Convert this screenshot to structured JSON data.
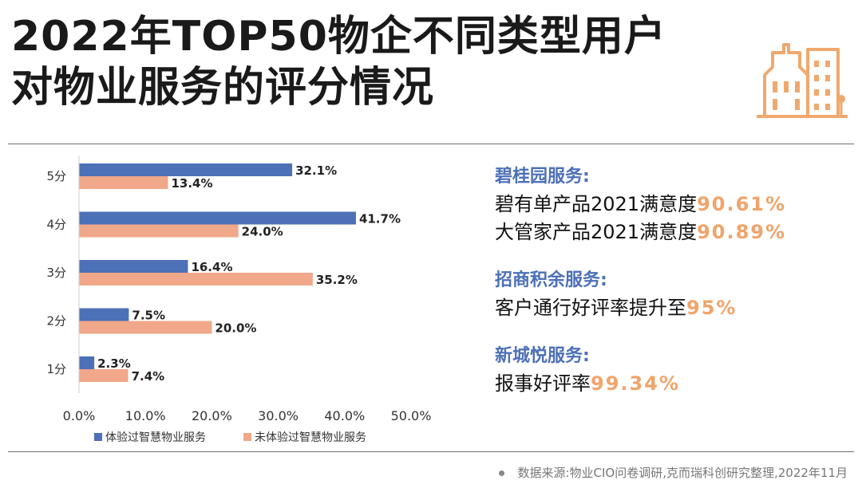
{
  "title_lines": [
    "2022年TOP50物企不同类型用户",
    "对物业服务的评分情况"
  ],
  "chart_data": {
    "type": "bar",
    "orientation": "horizontal",
    "categories": [
      "5分",
      "4分",
      "3分",
      "2分",
      "1分"
    ],
    "series": [
      {
        "name": "体验过智慧物业服务",
        "values": [
          32.1,
          41.7,
          16.4,
          7.5,
          2.3
        ],
        "color": "#4d70b7"
      },
      {
        "name": "未体验过智慧物业服务",
        "values": [
          13.4,
          24.0,
          35.2,
          20.0,
          7.4
        ],
        "color": "#f0a78a"
      }
    ],
    "value_labels": [
      [
        "32.1%",
        "41.7%",
        "16.4%",
        "7.5%",
        "2.3%"
      ],
      [
        "13.4%",
        "24.0%",
        "35.2%",
        "20.0%",
        "7.4%"
      ]
    ],
    "xlim": [
      0,
      50
    ],
    "xticks": [
      "0.0%",
      "10.0%",
      "20.0%",
      "30.0%",
      "40.0%",
      "50.0%"
    ],
    "legend_position": "bottom",
    "grid": false
  },
  "companies": [
    {
      "name": "碧桂园服务:",
      "lines": [
        {
          "text": "碧有单产品2021满意度",
          "value": "90.61%"
        },
        {
          "text": "大管家产品2021满意度",
          "value": "90.89%"
        }
      ]
    },
    {
      "name": "招商积余服务:",
      "lines": [
        {
          "text": "客户通行好评率提升至",
          "value": "95%"
        }
      ]
    },
    {
      "name": "新城悦服务:",
      "lines": [
        {
          "text": "报事好评率",
          "value": "99.34%"
        }
      ]
    }
  ],
  "source": "数据来源:物业CIO问卷调研,克而瑞科创研究整理,2022年11月",
  "colors": {
    "accent_blue": "#4d70b7",
    "accent_orange": "#f0a46a",
    "icon_orange": "#f0a86e"
  },
  "icons": [
    "building-icon",
    "source-dot-icon"
  ]
}
